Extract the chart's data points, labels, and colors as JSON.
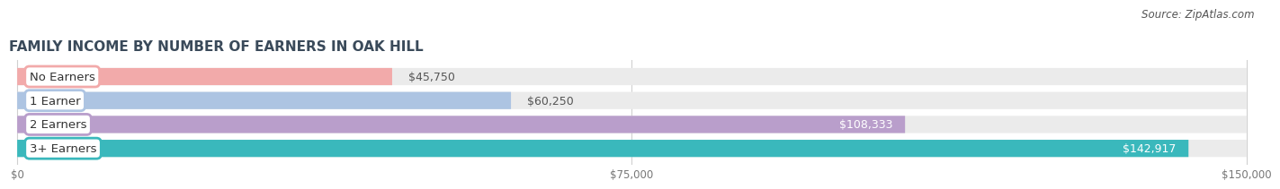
{
  "title": "FAMILY INCOME BY NUMBER OF EARNERS IN OAK HILL",
  "source": "Source: ZipAtlas.com",
  "categories": [
    "No Earners",
    "1 Earner",
    "2 Earners",
    "3+ Earners"
  ],
  "values": [
    45750,
    60250,
    108333,
    142917
  ],
  "bar_colors": [
    "#f2aaaa",
    "#adc4e2",
    "#b99ecb",
    "#3ab8bc"
  ],
  "track_color": "#ebebeb",
  "xlim": [
    0,
    150000
  ],
  "xticks": [
    0,
    75000,
    150000
  ],
  "xtick_labels": [
    "$0",
    "$75,000",
    "$150,000"
  ],
  "value_outside_threshold": 90000,
  "background_color": "#ffffff",
  "title_fontsize": 11,
  "source_fontsize": 8.5,
  "bar_height": 0.72,
  "label_fontsize": 9.5,
  "value_fontsize": 9,
  "title_color": "#3a4a5a",
  "source_color": "#555555",
  "outside_label_color": "#555555",
  "inside_label_color": "#ffffff",
  "grid_color": "#d0d0d0",
  "tick_color": "#777777"
}
